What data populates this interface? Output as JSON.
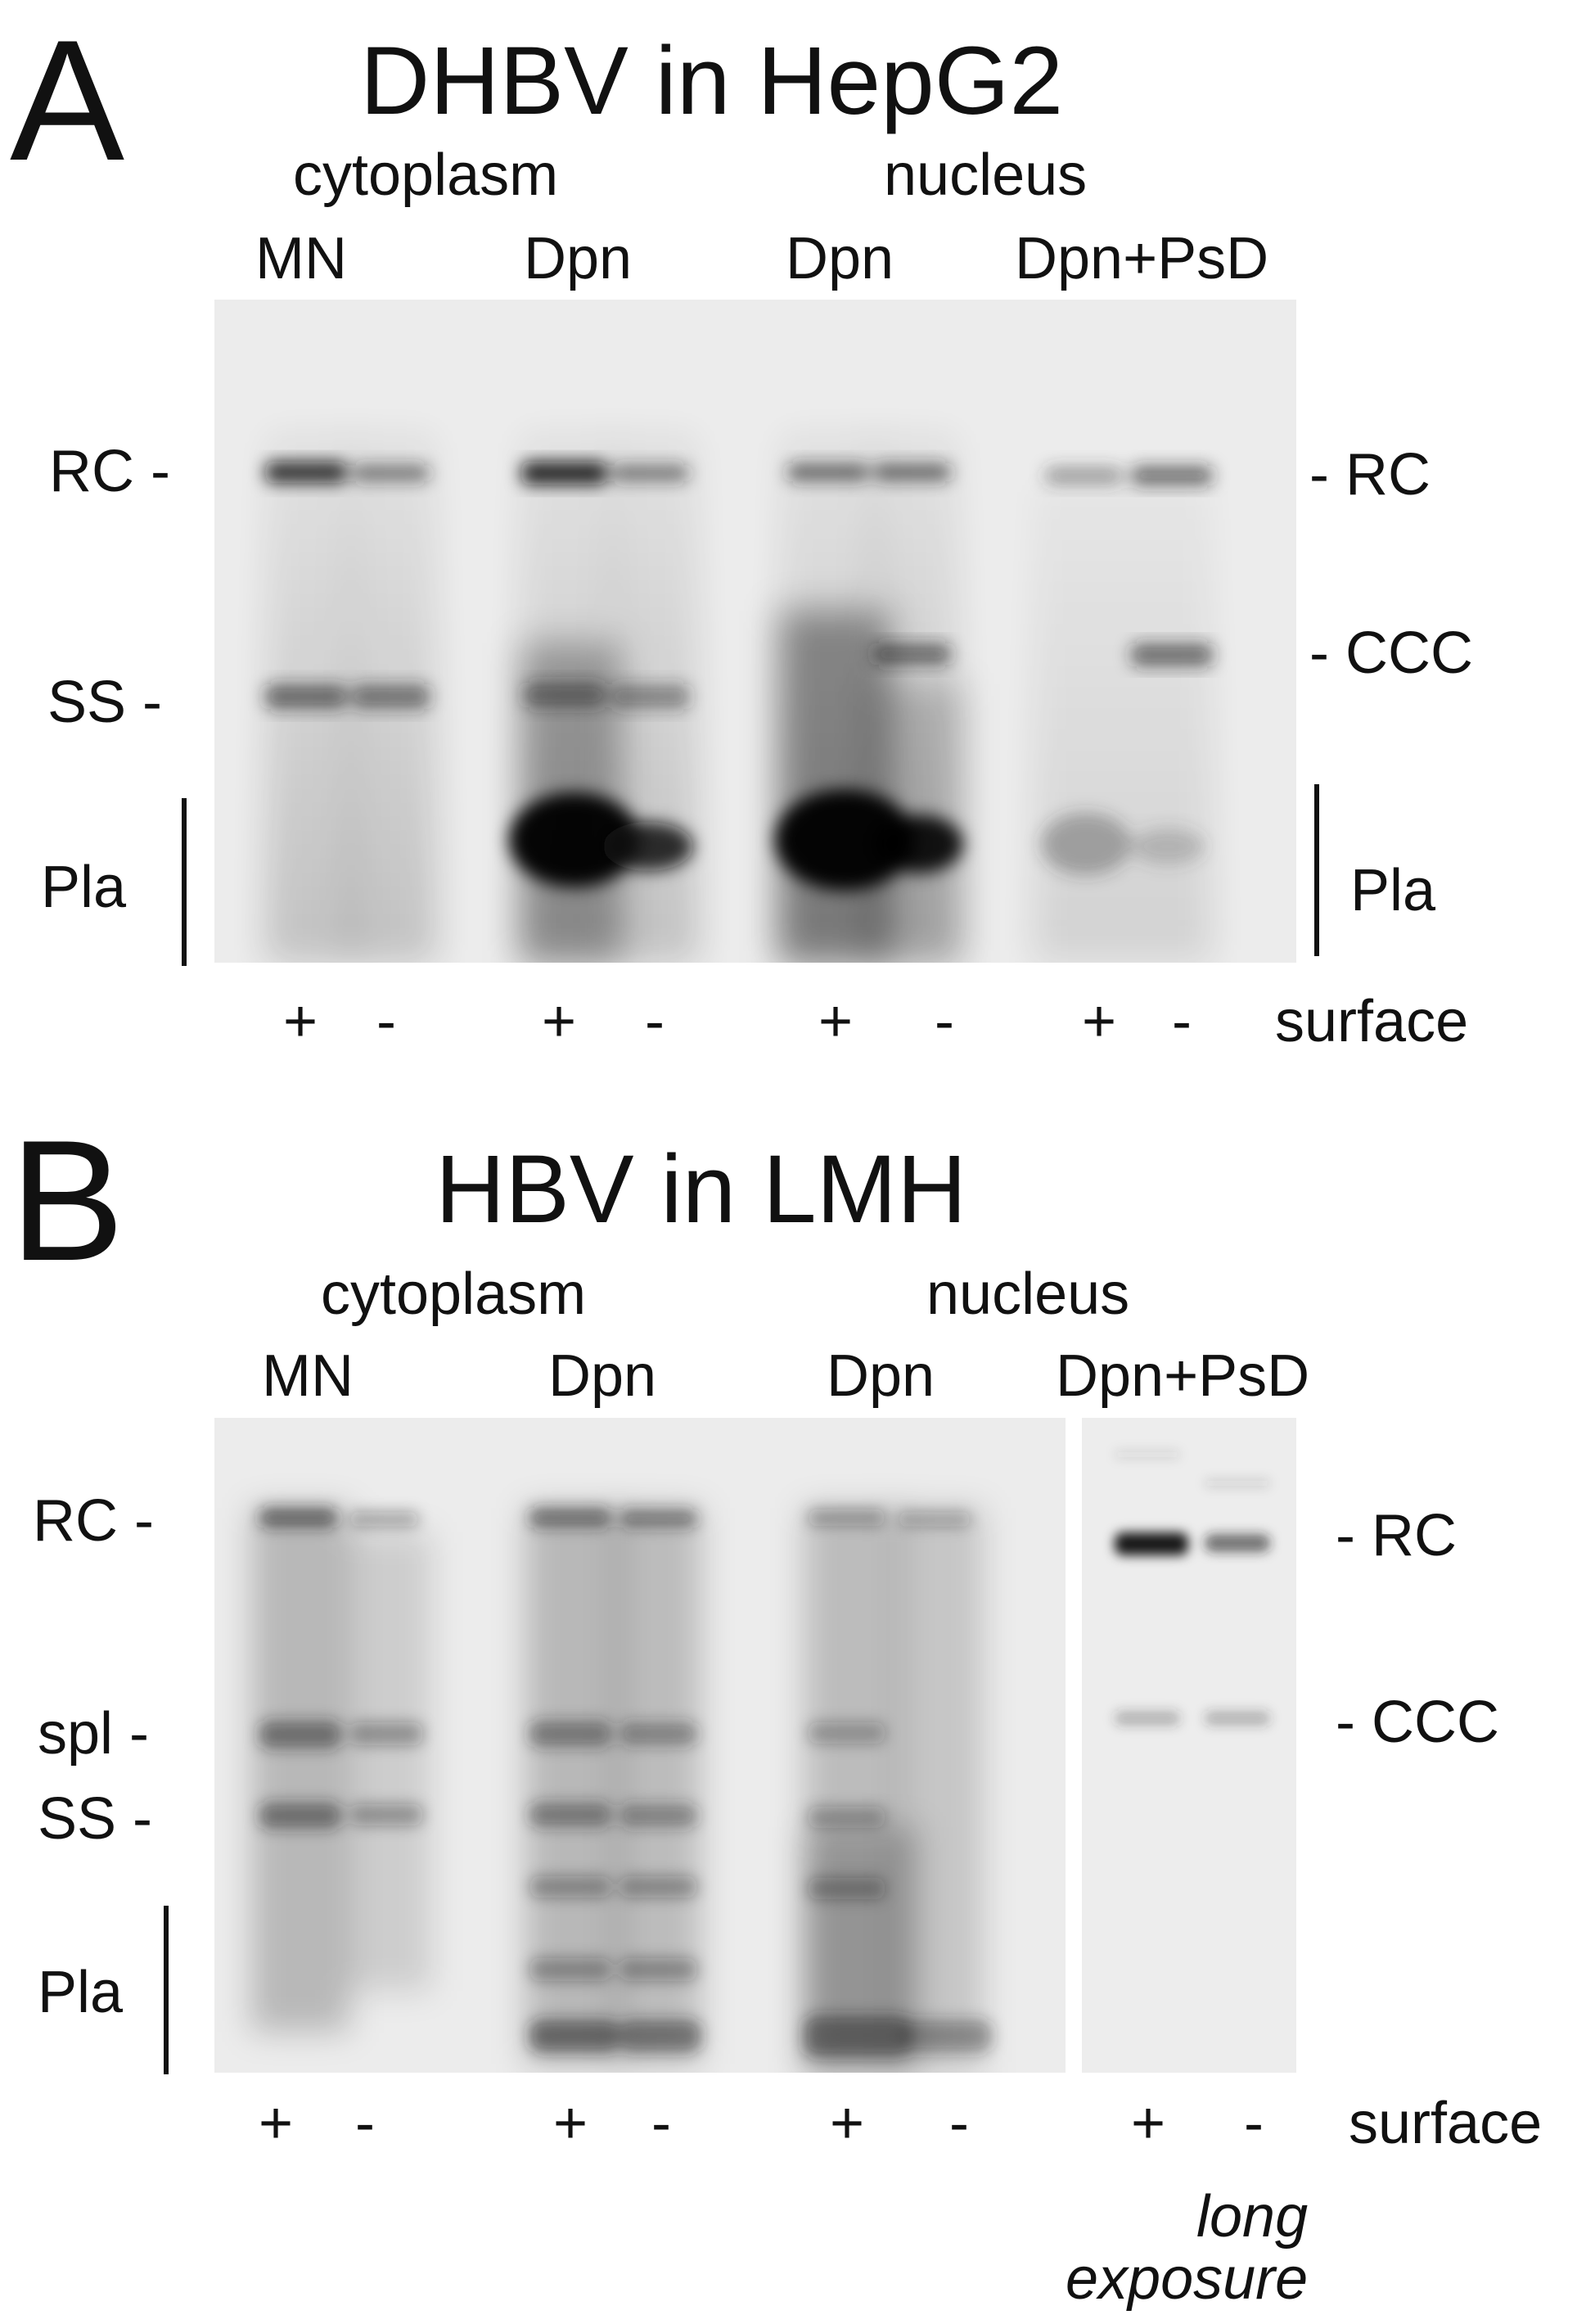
{
  "panel_a": {
    "letter": "A",
    "title": "DHBV in HepG2",
    "compartments": [
      "cytoplasm",
      "nucleus"
    ],
    "treatments": [
      "MN",
      "Dpn",
      "Dpn",
      "Dpn+PsD"
    ],
    "left_labels": {
      "rc": "RC -",
      "ss": "SS -",
      "pla": "Pla"
    },
    "right_labels": {
      "rc": "- RC",
      "ccc": "- CCC",
      "pla": "Pla"
    },
    "lane_signs": [
      "+",
      "-",
      "+",
      "-",
      "+",
      "-",
      "+",
      "-"
    ],
    "row_label": "surface"
  },
  "panel_b": {
    "letter": "B",
    "title": "HBV in LMH",
    "compartments": [
      "cytoplasm",
      "nucleus"
    ],
    "treatments": [
      "MN",
      "Dpn",
      "Dpn",
      "Dpn+PsD"
    ],
    "left_labels": {
      "rc": "RC -",
      "spl": "spl -",
      "ss": "SS -",
      "pla": "Pla"
    },
    "right_labels": {
      "rc": "- RC",
      "ccc": "- CCC"
    },
    "lane_signs": [
      "+",
      "-",
      "+",
      "-",
      "+",
      "-",
      "+",
      "-"
    ],
    "row_label": "surface",
    "note_line1": "long",
    "note_line2": "exposure"
  }
}
